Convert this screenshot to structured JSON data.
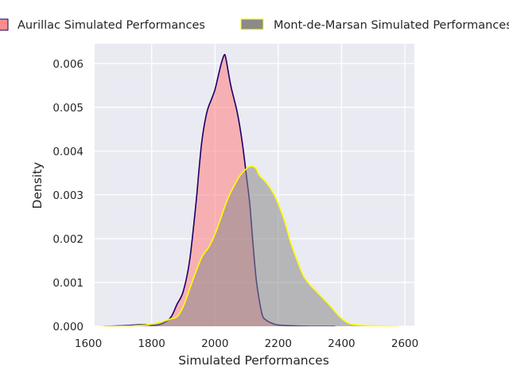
{
  "chart_data": {
    "type": "area",
    "title": "",
    "xlabel": "Simulated Performances",
    "ylabel": "Density",
    "xlim": [
      1620,
      2630
    ],
    "ylim": [
      0,
      0.00645
    ],
    "xticks": [
      1600,
      1800,
      2000,
      2200,
      2400,
      2600
    ],
    "xtick_labels": [
      "1600",
      "1800",
      "2000",
      "2200",
      "2400",
      "2600"
    ],
    "yticks": [
      0,
      0.001,
      0.002,
      0.003,
      0.004,
      0.005,
      0.006
    ],
    "ytick_labels": [
      "0.000",
      "0.001",
      "0.002",
      "0.003",
      "0.004",
      "0.005",
      "0.006"
    ],
    "grid": true,
    "background": "#eaeaf2",
    "legend": {
      "placement": "top, outside, horizontal"
    },
    "series": [
      {
        "name": "Aurillac Simulated Performances",
        "fill_color": "#ff7f7f",
        "edge_color": "#1a0066",
        "x": [
          1650,
          1700,
          1750,
          1780,
          1800,
          1830,
          1860,
          1880,
          1900,
          1920,
          1940,
          1950,
          1960,
          1975,
          1990,
          2000,
          2010,
          2020,
          2030,
          2035,
          2040,
          2050,
          2060,
          2070,
          2080,
          2090,
          2100,
          2110,
          2120,
          2130,
          2140,
          2150,
          2160,
          2180,
          2200,
          2250,
          2300,
          2350,
          2380
        ],
        "y": [
          0,
          1e-05,
          3e-05,
          4e-05,
          2e-05,
          5e-05,
          0.0002,
          0.0005,
          0.0008,
          0.0015,
          0.0028,
          0.0036,
          0.0043,
          0.0049,
          0.0052,
          0.0054,
          0.0057,
          0.006,
          0.0062,
          0.0061,
          0.0059,
          0.0055,
          0.0052,
          0.0049,
          0.0045,
          0.004,
          0.0034,
          0.0028,
          0.0019,
          0.0011,
          0.0006,
          0.00025,
          0.00015,
          7e-05,
          3e-05,
          1e-05,
          0,
          0,
          0
        ]
      },
      {
        "name": "Mont-de-Marsan Simulated Performances",
        "fill_color": "#8a8a8a",
        "edge_color": "#ffff00",
        "x": [
          1640,
          1700,
          1760,
          1800,
          1840,
          1860,
          1880,
          1900,
          1920,
          1940,
          1960,
          1980,
          2000,
          2020,
          2040,
          2060,
          2080,
          2100,
          2110,
          2120,
          2130,
          2140,
          2160,
          2180,
          2200,
          2220,
          2240,
          2260,
          2280,
          2300,
          2320,
          2340,
          2360,
          2380,
          2400,
          2420,
          2440,
          2480,
          2520,
          2560,
          2580
        ],
        "y": [
          0,
          0,
          2e-05,
          5e-05,
          0.00012,
          0.00017,
          0.00022,
          0.00045,
          0.00085,
          0.00125,
          0.0016,
          0.0018,
          0.0021,
          0.0025,
          0.0029,
          0.0032,
          0.00345,
          0.0036,
          0.00365,
          0.00365,
          0.0036,
          0.00345,
          0.0033,
          0.0031,
          0.0028,
          0.0024,
          0.0019,
          0.0015,
          0.00115,
          0.00095,
          0.0008,
          0.00065,
          0.0005,
          0.00033,
          0.00018,
          8e-05,
          4e-05,
          2e-05,
          1e-05,
          0,
          0
        ]
      }
    ]
  }
}
